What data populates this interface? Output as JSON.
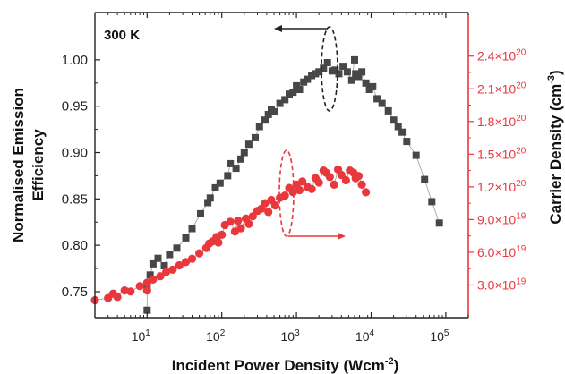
{
  "chart_data": {
    "type": "scatter",
    "annotation": "300 K",
    "x_axis": {
      "label_main": "Incident Power Density (Wcm",
      "label_sup": "-2",
      "label_end": ")",
      "scale": "log",
      "range": [
        2,
        200000
      ],
      "ticks": [
        {
          "value": 10,
          "base": "10",
          "exp": "1"
        },
        {
          "value": 100,
          "base": "10",
          "exp": "2"
        },
        {
          "value": 1000,
          "base": "10",
          "exp": "3"
        },
        {
          "value": 10000,
          "base": "10",
          "exp": "4"
        },
        {
          "value": 100000,
          "base": "10",
          "exp": "5"
        }
      ]
    },
    "y_left": {
      "label_line1": "Normalised Emission",
      "label_line2": "Efficiency",
      "range": [
        0.722,
        1.051
      ],
      "ticks": [
        "0.75",
        "0.80",
        "0.85",
        "0.90",
        "0.95",
        "1.00"
      ],
      "color": "#222222"
    },
    "y_right": {
      "label_main": "Carrier Density (cm",
      "label_sup": "-3",
      "label_end": ")",
      "range": [
        0,
        2.8e+20
      ],
      "color": "#e8383d",
      "ticks": [
        {
          "value": 3e+19,
          "mant": "3.0×10",
          "exp": "19"
        },
        {
          "value": 6e+19,
          "mant": "6.0×10",
          "exp": "19"
        },
        {
          "value": 9e+19,
          "mant": "9.0×10",
          "exp": "19"
        },
        {
          "value": 1.2e+20,
          "mant": "1.2×10",
          "exp": "20"
        },
        {
          "value": 1.5e+20,
          "mant": "1.5×10",
          "exp": "20"
        },
        {
          "value": 1.8e+20,
          "mant": "1.8×10",
          "exp": "20"
        },
        {
          "value": 2.1e+20,
          "mant": "2.1×10",
          "exp": "20"
        },
        {
          "value": 2.4e+20,
          "mant": "2.4×10",
          "exp": "20"
        }
      ]
    },
    "series": [
      {
        "axis": "left",
        "marker": "square",
        "color": "#474747",
        "x": [
          10,
          10,
          11,
          12,
          14,
          17,
          20,
          25,
          33,
          40,
          52,
          65,
          70,
          82,
          95,
          120,
          130,
          155,
          180,
          200,
          230,
          280,
          320,
          380,
          420,
          460,
          510,
          600,
          700,
          800,
          900,
          1000,
          1100,
          1250,
          1400,
          1600,
          1800,
          2000,
          2300,
          2600,
          3000,
          3300,
          3700,
          4200,
          4800,
          5500,
          6000,
          6200,
          6800,
          7500,
          8500,
          9500,
          10500,
          12000,
          14000,
          17000,
          20000,
          23000,
          26000,
          30000,
          40000,
          52000,
          65000,
          82000
        ],
        "y": [
          0.73,
          0.757,
          0.768,
          0.78,
          0.786,
          0.778,
          0.79,
          0.797,
          0.808,
          0.818,
          0.834,
          0.846,
          0.851,
          0.862,
          0.867,
          0.875,
          0.888,
          0.883,
          0.893,
          0.9,
          0.909,
          0.916,
          0.928,
          0.935,
          0.941,
          0.946,
          0.944,
          0.953,
          0.957,
          0.963,
          0.965,
          0.972,
          0.968,
          0.976,
          0.979,
          0.983,
          0.985,
          0.987,
          0.991,
          0.997,
          0.988,
          0.989,
          0.985,
          0.993,
          0.987,
          0.978,
          1.0,
          0.985,
          0.982,
          0.987,
          0.975,
          0.968,
          0.971,
          0.958,
          0.953,
          0.945,
          0.935,
          0.928,
          0.922,
          0.912,
          0.897,
          0.871,
          0.847,
          0.824
        ]
      },
      {
        "axis": "right",
        "marker": "circle",
        "color": "#e8383d",
        "x": [
          2,
          3,
          3.5,
          4,
          5,
          6,
          8,
          10,
          10,
          12,
          15,
          18,
          22,
          27,
          33,
          40,
          50,
          62,
          68,
          75,
          85,
          90,
          100,
          110,
          130,
          150,
          165,
          180,
          210,
          230,
          260,
          300,
          340,
          380,
          420,
          460,
          520,
          600,
          700,
          800,
          900,
          1000,
          1100,
          1200,
          1400,
          1600,
          1800,
          2000,
          2300,
          2500,
          2800,
          3200,
          3600,
          4000,
          4600,
          5200,
          5800,
          6200,
          6800,
          7500,
          8500
        ],
        "y": [
          1.6e+19,
          1.8e+19,
          2.2e+19,
          1.9e+19,
          2.5e+19,
          2.4e+19,
          2.9e+19,
          3.2e+19,
          2.5e+19,
          3.5e+19,
          3.8e+19,
          4.2e+19,
          4.4e+19,
          4.8e+19,
          5.1e+19,
          5.4e+19,
          5.9e+19,
          6.4e+19,
          6.8e+19,
          7e+19,
          7.4e+19,
          6.9e+19,
          7.6e+19,
          8.5e+19,
          8.8e+19,
          7.9e+19,
          8.9e+19,
          8.2e+19,
          9.1e+19,
          8.6e+19,
          9.3e+19,
          9.8e+19,
          1e+20,
          1.05e+20,
          9.7e+19,
          1.08e+20,
          1.03e+20,
          1.1e+20,
          1.12e+20,
          1.19e+20,
          1.15e+20,
          1.22e+20,
          1.17e+20,
          1.25e+20,
          1.2e+20,
          1.18e+20,
          1.28e+20,
          1.24e+20,
          1.35e+20,
          1.33e+20,
          1.29e+20,
          1.22e+20,
          1.36e+20,
          1.31e+20,
          1.26e+20,
          1.35e+20,
          1.33e+20,
          1.28e+20,
          1.3e+20,
          1.22e+20,
          1.15e+20
        ]
      }
    ]
  }
}
